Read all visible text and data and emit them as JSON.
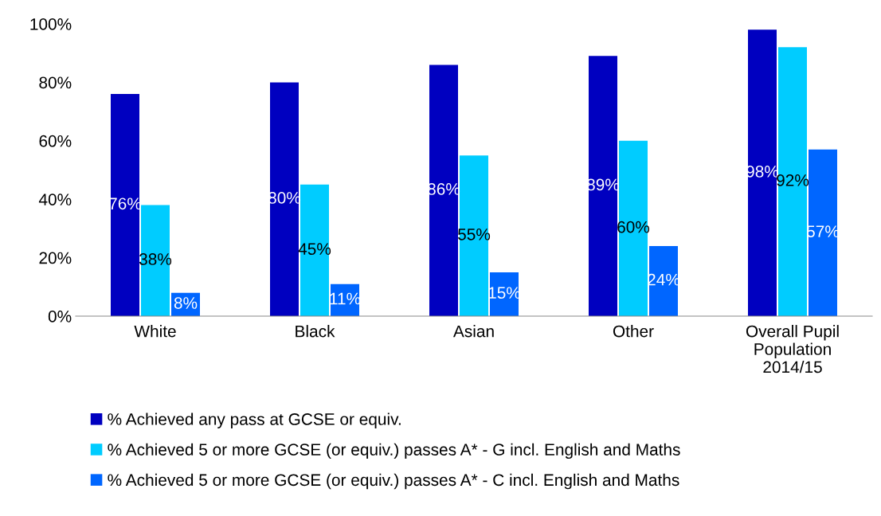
{
  "chart_data": {
    "type": "bar",
    "categories": [
      "White",
      "Black",
      "Asian",
      "Other",
      "Overall Pupil\nPopulation\n2014/15"
    ],
    "series": [
      {
        "name": "% Achieved any pass at GCSE or equiv.",
        "color": "#0000c0",
        "values": [
          76,
          80,
          86,
          89,
          98
        ],
        "value_labels": [
          "76%",
          "80%",
          "86%",
          "89%",
          "98%"
        ]
      },
      {
        "name": "% Achieved 5 or more GCSE (or equiv.) passes A* - G incl. English and Maths",
        "color": "#00ccff",
        "values": [
          38,
          45,
          55,
          60,
          92
        ],
        "value_labels": [
          "38%",
          "45%",
          "55%",
          "60%",
          "92%"
        ]
      },
      {
        "name": "% Achieved 5 or more GCSE (or equiv.) passes A* - C incl. English and Maths",
        "color": "#0066ff",
        "values": [
          8,
          11,
          15,
          24,
          57
        ],
        "value_labels": [
          "8%",
          "11%",
          "15%",
          "24%",
          "57%"
        ]
      }
    ],
    "ylim": [
      0,
      100
    ],
    "yticks": [
      {
        "value": 0,
        "label": "0%"
      },
      {
        "value": 20,
        "label": "20%"
      },
      {
        "value": 40,
        "label": "40%"
      },
      {
        "value": 60,
        "label": "60%"
      },
      {
        "value": 80,
        "label": "80%"
      },
      {
        "value": 100,
        "label": "100%"
      }
    ],
    "grid": false,
    "legend": "bottom"
  }
}
